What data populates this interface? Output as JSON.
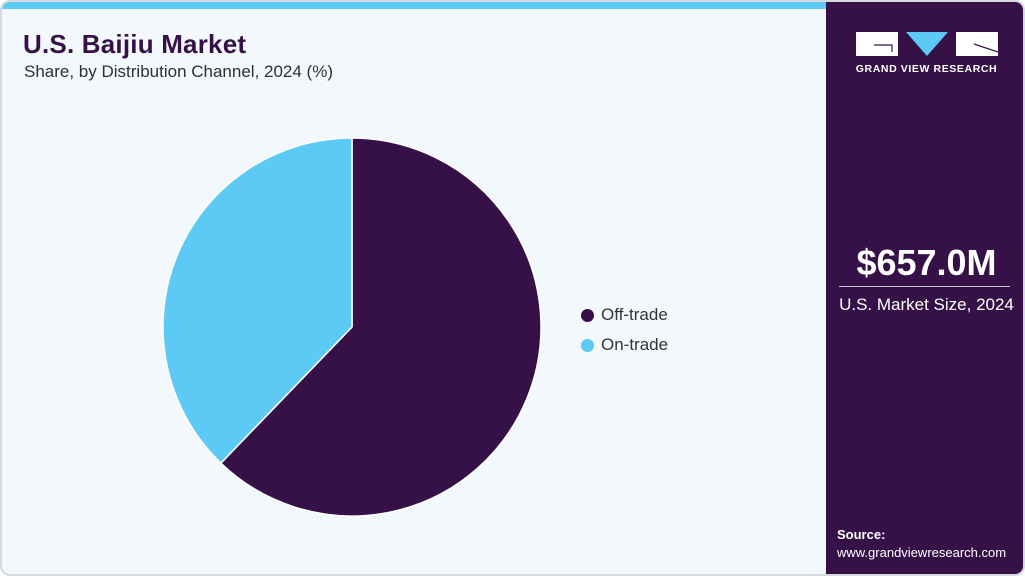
{
  "header": {
    "title": "U.S. Baijiu Market",
    "subtitle": "Share, by Distribution Channel, 2024 (%)"
  },
  "legend": {
    "items": [
      {
        "label": "Off-trade",
        "color": "#361147"
      },
      {
        "label": "On-trade",
        "color": "#5ccaf5"
      }
    ]
  },
  "side_panel": {
    "brand": "GRAND VIEW RESEARCH",
    "logo_icon": "gvr-logo-icon",
    "market_size_value": "$657.0M",
    "market_size_label": "U.S. Market Size, 2024",
    "source_title": "Source:",
    "source_url": "www.grandviewresearch.com"
  },
  "colors": {
    "primary": "#361147",
    "accent": "#5ccaf5",
    "background": "#f3f8fc"
  },
  "chart_data": {
    "type": "pie",
    "title": "U.S. Baijiu Market",
    "subtitle": "Share, by Distribution Channel, 2024 (%)",
    "categories": [
      "Off-trade",
      "On-trade"
    ],
    "values": [
      62.2,
      37.8
    ],
    "colors": [
      "#361147",
      "#5ccaf5"
    ],
    "start_angle": "12 o'clock, clockwise",
    "legend_position": "right",
    "data_labels": false
  }
}
